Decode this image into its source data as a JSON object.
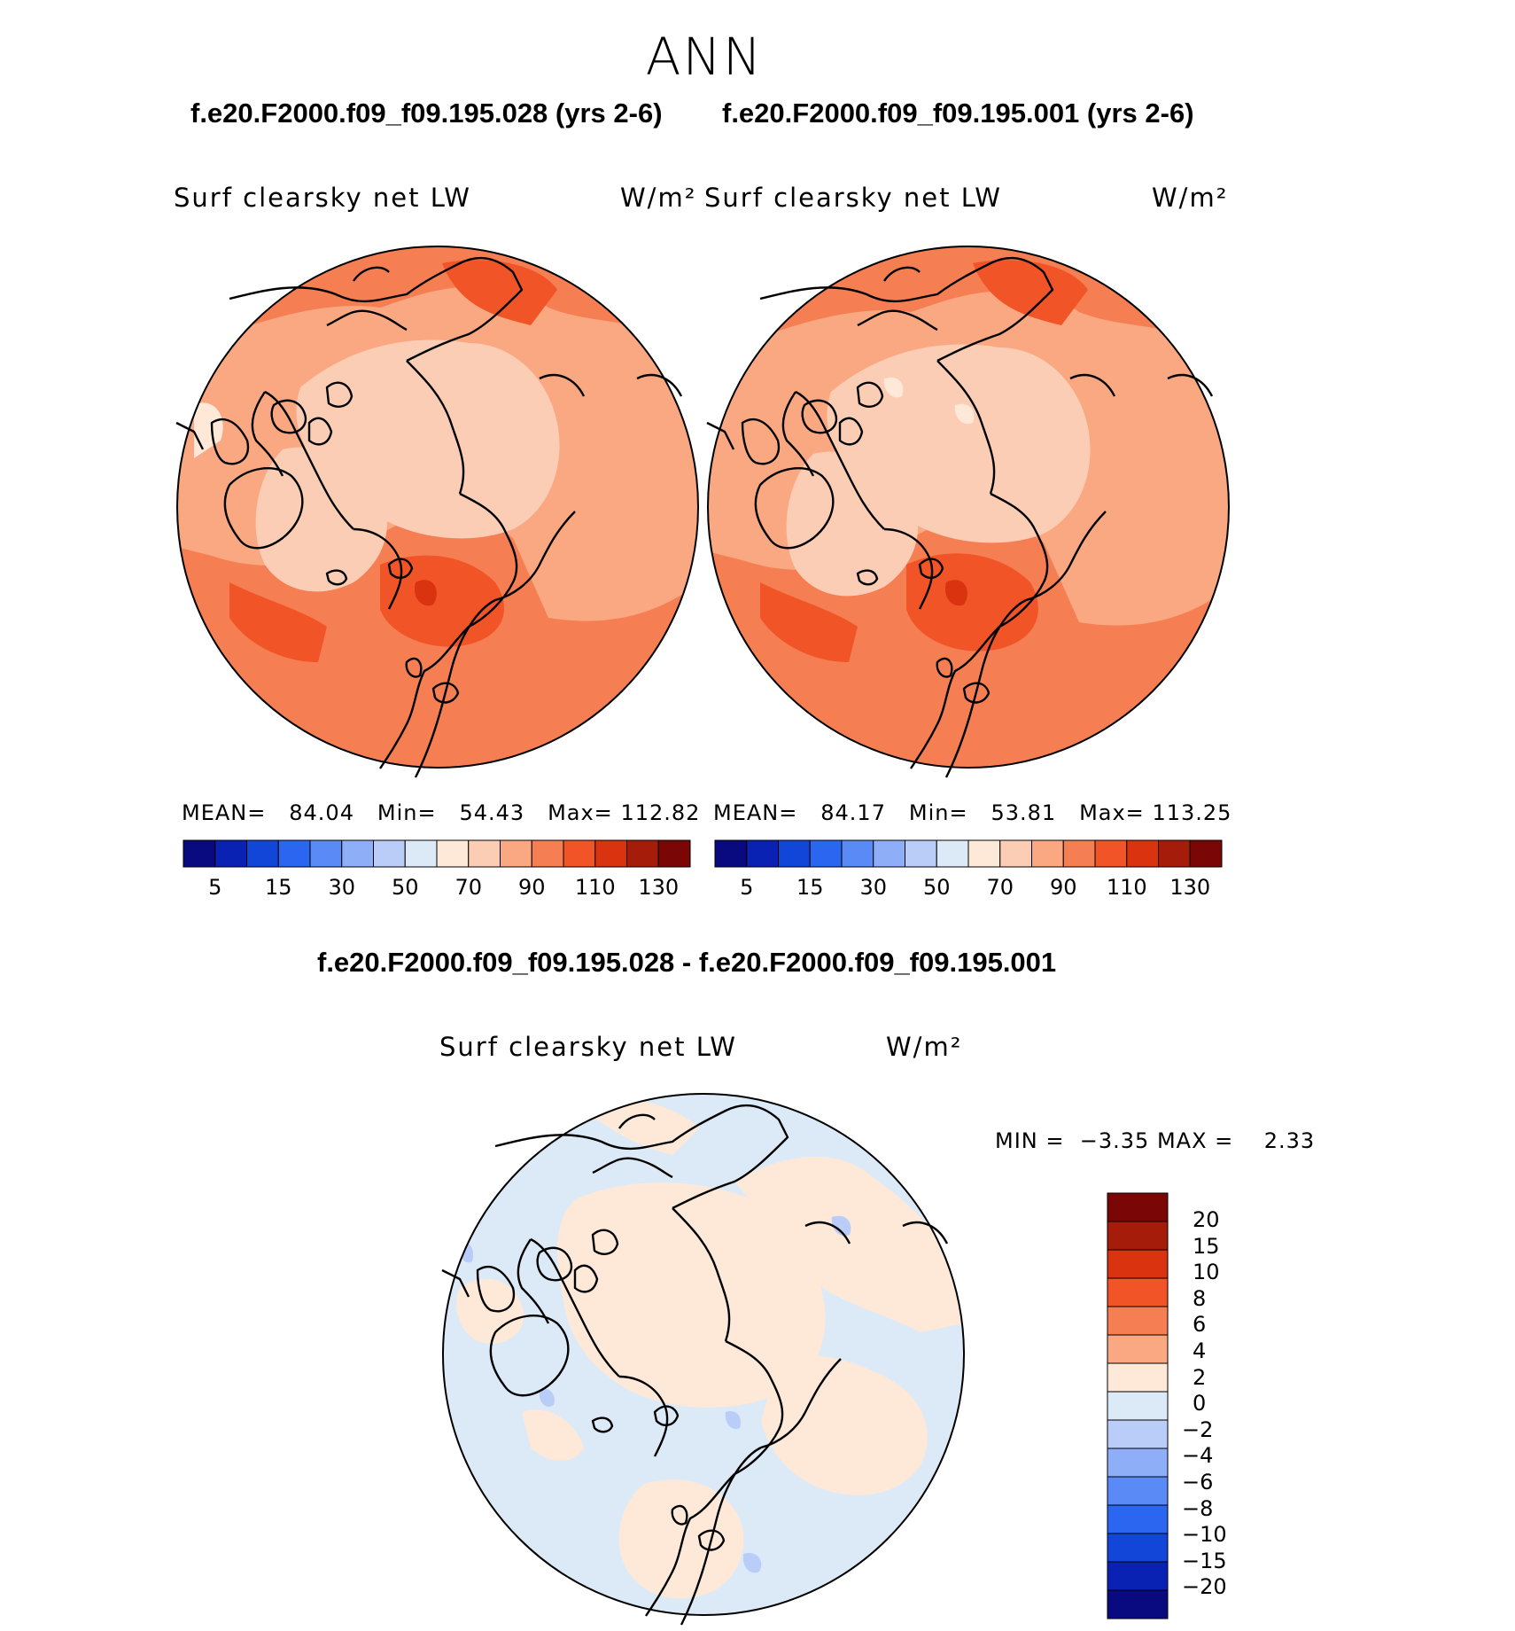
{
  "header": {
    "season": "ANN",
    "case_left": "f.e20.F2000.f09_f09.195.028 (yrs 2-6)",
    "case_right": "f.e20.F2000.f09_f09.195.001 (yrs 2-6)",
    "diff_title": "f.e20.F2000.f09_f09.195.028 - f.e20.F2000.f09_f09.195.001"
  },
  "panels": [
    {
      "field": "Surf clearsky net LW",
      "units": "W/m²",
      "stats": {
        "mean_label": "MEAN=",
        "mean": "84.04",
        "min_label": "Min=",
        "min": "54.43",
        "max_label": "Max=",
        "max": "112.82"
      }
    },
    {
      "field": "Surf clearsky net LW",
      "units": "W/m²",
      "stats": {
        "mean_label": "MEAN=",
        "mean": "84.17",
        "min_label": "Min=",
        "min": "53.81",
        "max_label": "Max=",
        "max": "113.25"
      }
    }
  ],
  "diff_panel": {
    "field": "Surf clearsky net LW",
    "units": "W/m²",
    "min_label": "MIN =",
    "min": "−3.35",
    "max_label": "MAX =",
    "max": "2.33"
  },
  "colorbar_main": {
    "colors": [
      "#0a0a80",
      "#0a22b4",
      "#1246d8",
      "#2a66f0",
      "#5a8af5",
      "#8eaef8",
      "#bacdf8",
      "#dceaf8",
      "#fee8d8",
      "#fccdb5",
      "#f9a882",
      "#f57e52",
      "#f05427",
      "#d93310",
      "#a61c0a",
      "#7a0606"
    ],
    "labels": [
      "5",
      "15",
      "30",
      "50",
      "70",
      "90",
      "110",
      "130"
    ]
  },
  "colorbar_diff": {
    "colors": [
      "#7a0606",
      "#a61c0a",
      "#d93310",
      "#f05427",
      "#f57e52",
      "#f9a882",
      "#fee8d8",
      "#dceaf8",
      "#bacdf8",
      "#8eaef8",
      "#5a8af5",
      "#2a66f0",
      "#1246d8",
      "#0a22b4",
      "#0a0a80"
    ],
    "labels": [
      "20",
      "15",
      "10",
      "8",
      "6",
      "4",
      "2",
      "0",
      "−2",
      "−4",
      "−6",
      "−8",
      "−10",
      "−15",
      "−20"
    ]
  }
}
